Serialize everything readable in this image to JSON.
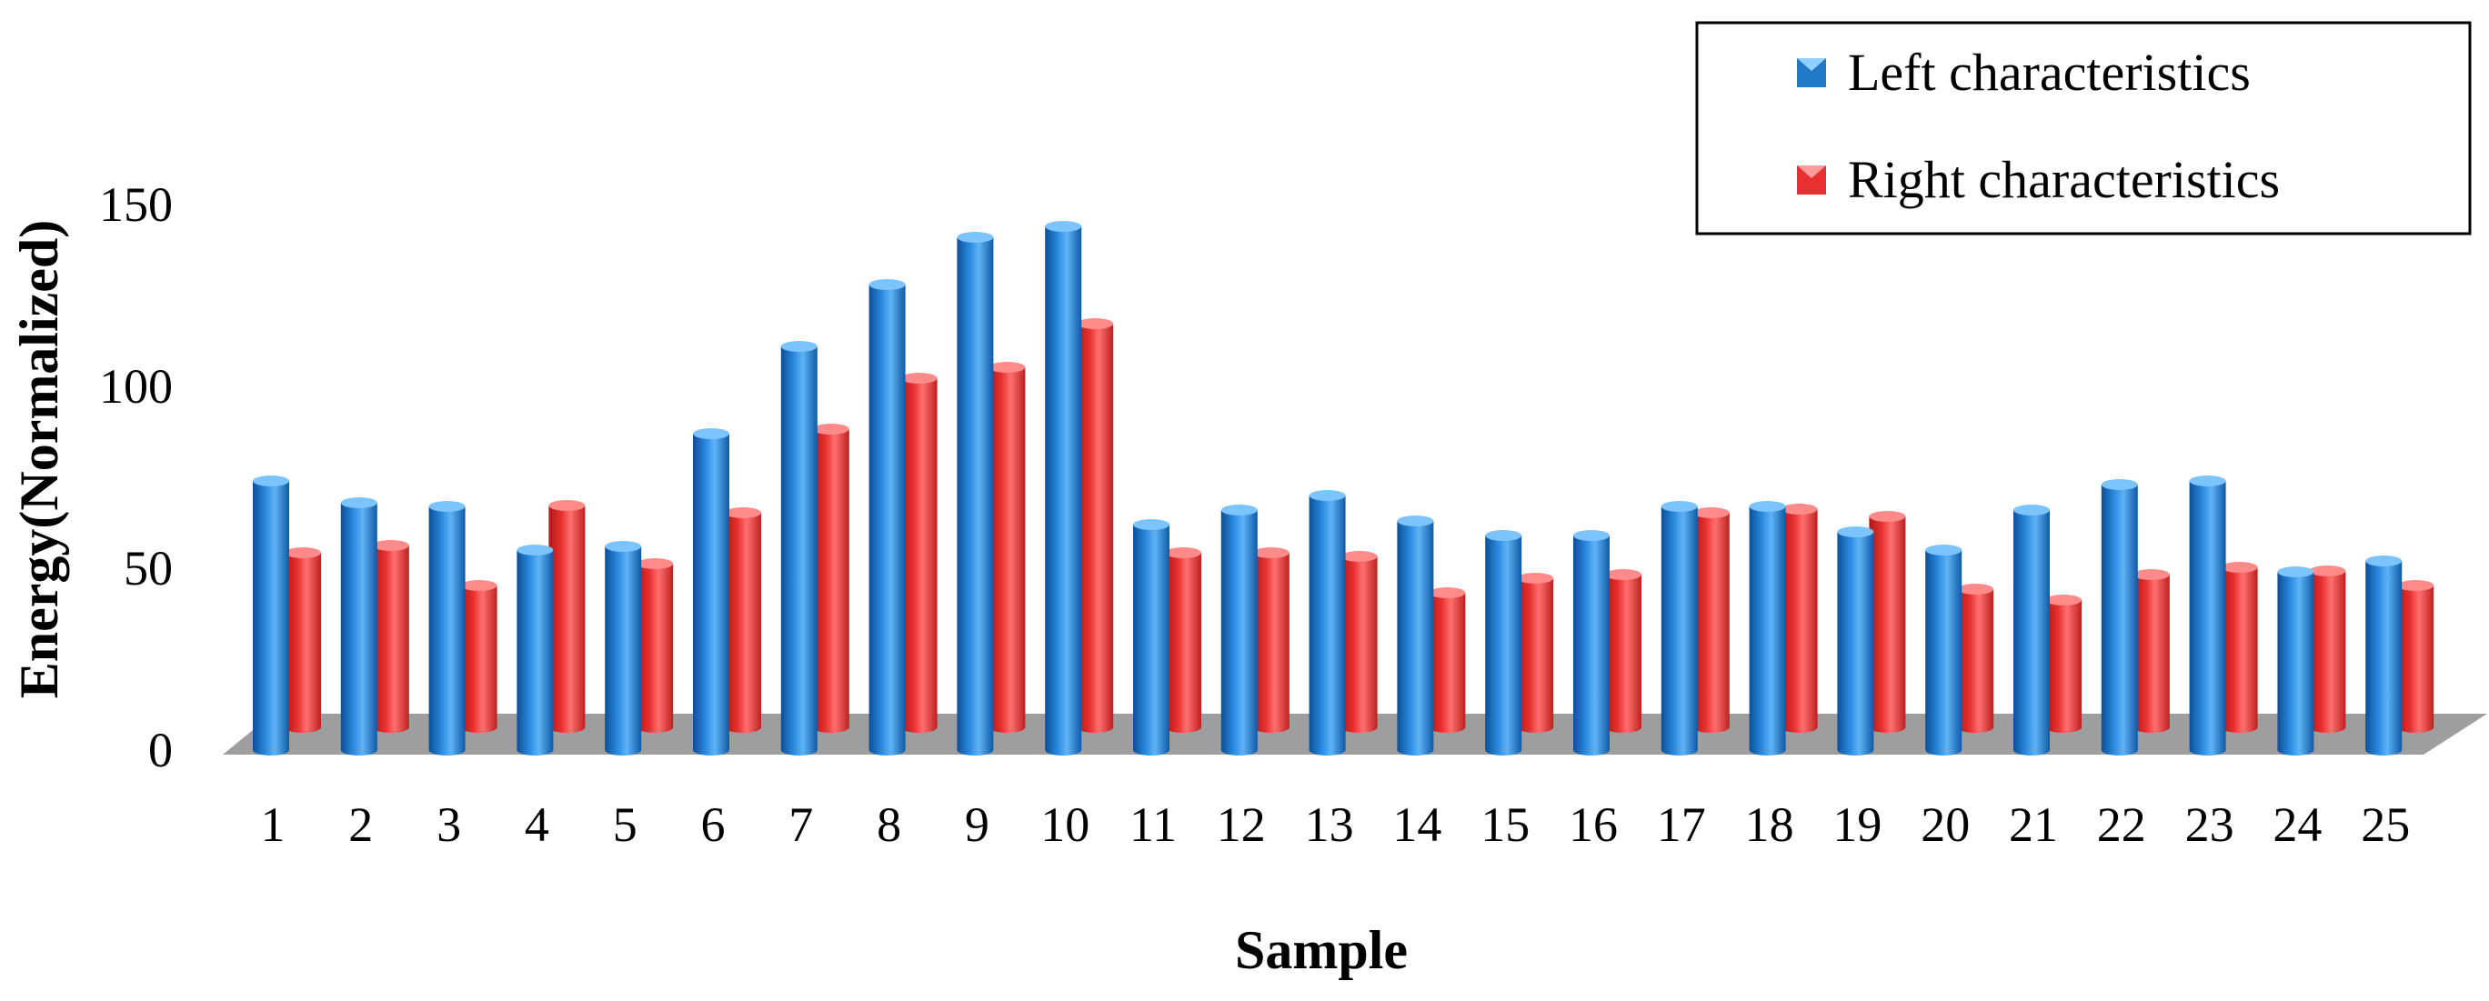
{
  "chart_data": {
    "type": "bar",
    "title": "",
    "xlabel": "Sample",
    "ylabel": "Energy(Normalized)",
    "ylim": [
      0,
      150
    ],
    "yticks": [
      0,
      50,
      100,
      150
    ],
    "grid": false,
    "legend_position": "top-right",
    "categories": [
      "1",
      "2",
      "3",
      "4",
      "5",
      "6",
      "7",
      "8",
      "9",
      "10",
      "11",
      "12",
      "13",
      "14",
      "15",
      "16",
      "17",
      "18",
      "19",
      "20",
      "21",
      "22",
      "23",
      "24",
      "25"
    ],
    "series": [
      {
        "name": "Left characteristics",
        "color": "#1f78c8",
        "values": [
          74,
          68,
          67,
          55,
          56,
          87,
          111,
          128,
          141,
          144,
          62,
          66,
          70,
          63,
          59,
          59,
          67,
          67,
          60,
          55,
          66,
          73,
          74,
          49,
          52
        ]
      },
      {
        "name": "Right characteristics",
        "color": "#e83030",
        "values": [
          48,
          50,
          39,
          61,
          45,
          59,
          82,
          96,
          99,
          111,
          48,
          48,
          47,
          37,
          41,
          42,
          59,
          60,
          58,
          38,
          35,
          42,
          44,
          43,
          39
        ]
      }
    ]
  }
}
